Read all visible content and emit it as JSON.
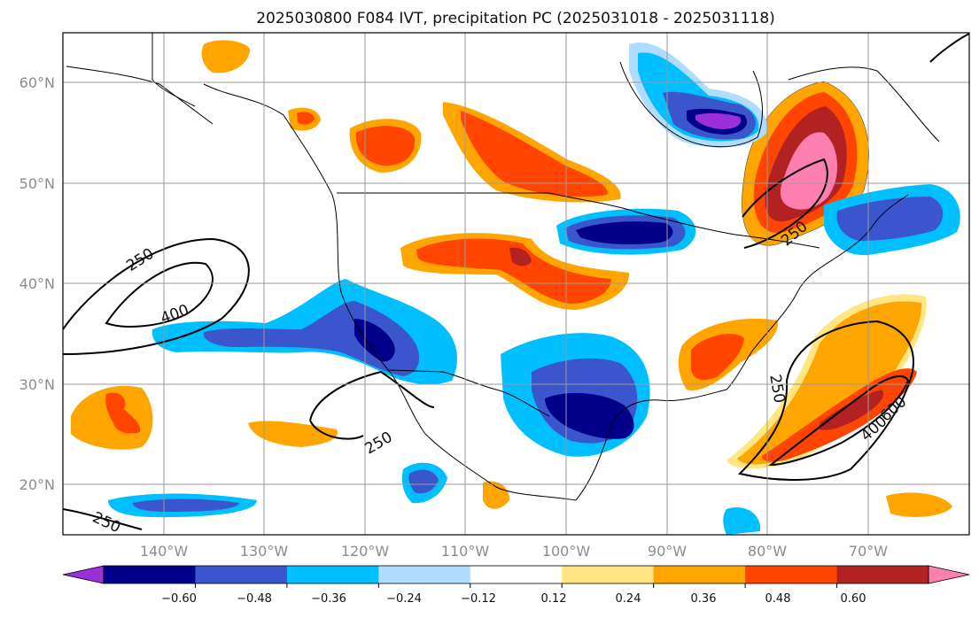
{
  "title": "2025030800 F084 IVT, precipitation PC (2025031018 - 2025031118)",
  "map": {
    "lat_labels": [
      "60°N",
      "50°N",
      "40°N",
      "30°N",
      "20°N"
    ],
    "lon_labels": [
      "140°W",
      "130°W",
      "120°W",
      "110°W",
      "100°W",
      "90°W",
      "80°W",
      "70°W"
    ],
    "extent": {
      "lon_min": -150,
      "lon_max": -60,
      "lat_min": 15,
      "lat_max": 65
    },
    "grid": true
  },
  "contour_labels": [
    "250",
    "400",
    "250",
    "250",
    "250",
    "400",
    "600",
    "250"
  ],
  "colorbar": {
    "labels": [
      "−0.60",
      "−0.48",
      "−0.36",
      "−0.24",
      "−0.12",
      "0.12",
      "0.24",
      "0.36",
      "0.48",
      "0.60"
    ],
    "colors": [
      "#9b30d8",
      "#00008b",
      "#3b56cc",
      "#00bfff",
      "#b0dcff",
      "#ffffff",
      "#ffe680",
      "#ffa500",
      "#ff4500",
      "#b22222",
      "#ff80b0"
    ],
    "extend": "both"
  }
}
